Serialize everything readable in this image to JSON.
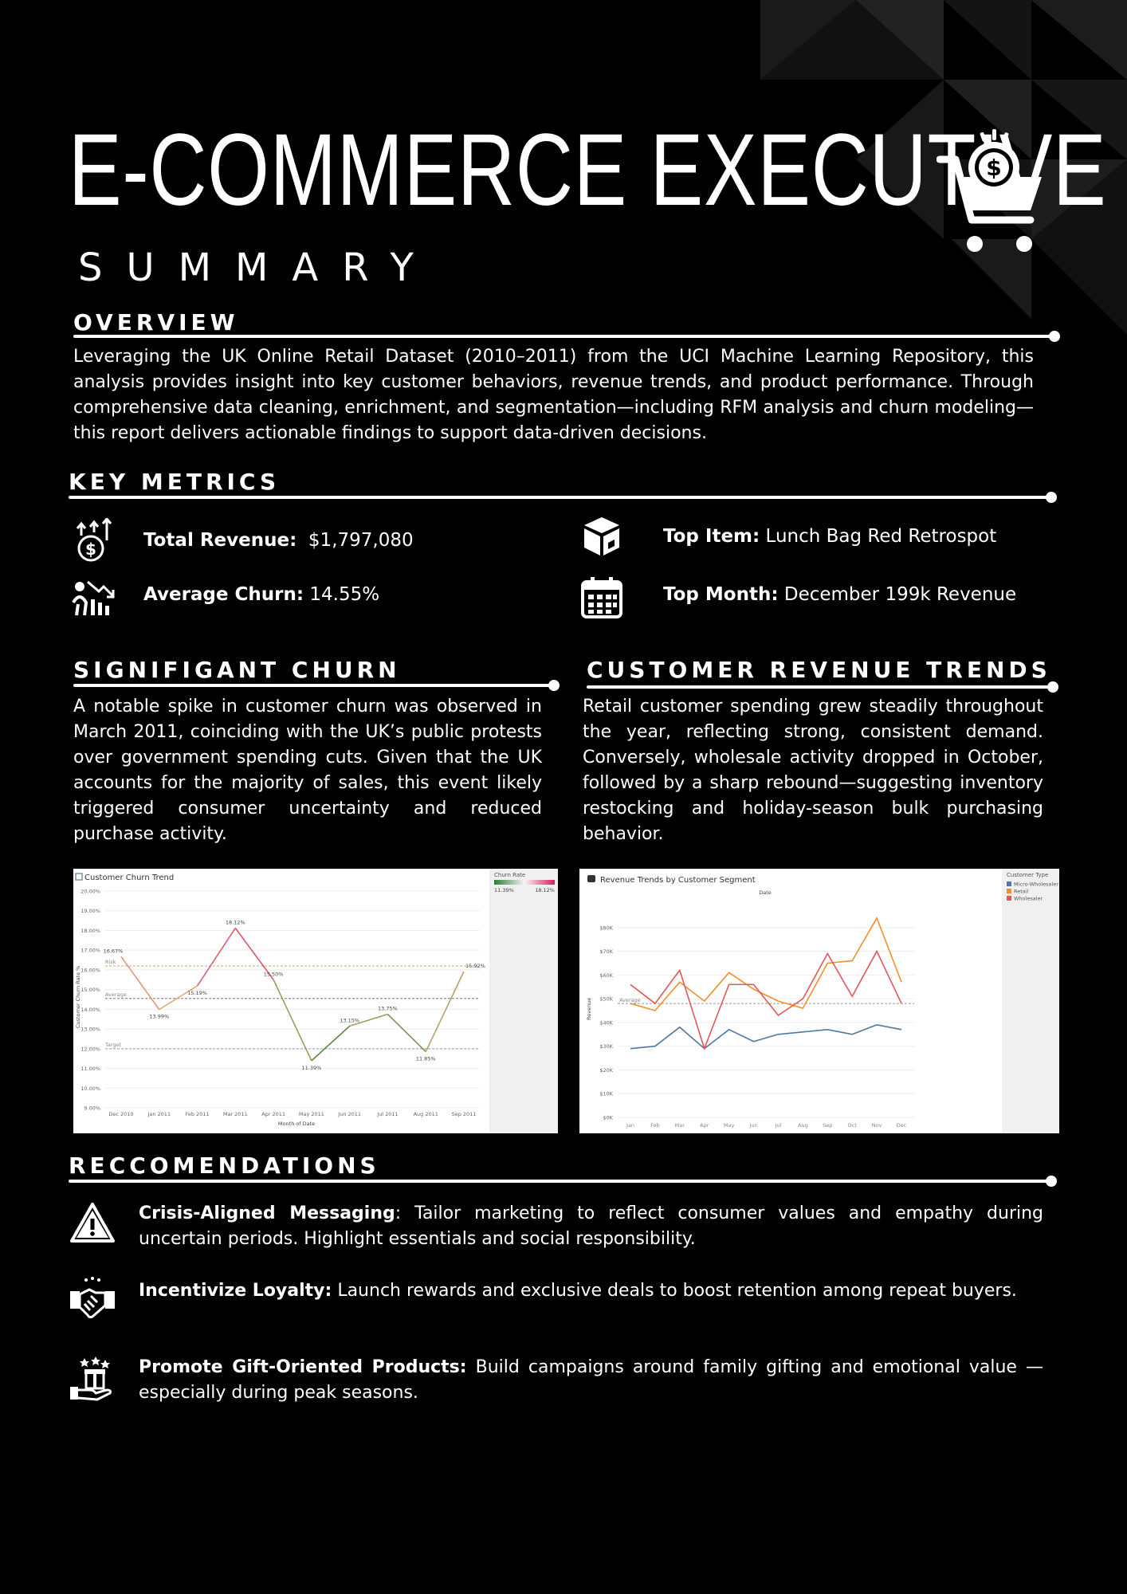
{
  "header": {
    "title": "E-COMMERCE EXECUTIVE",
    "subtitle": "SUMMARY"
  },
  "overview": {
    "heading": "OVERVIEW",
    "text": "Leveraging the UK Online Retail Dataset (2010–2011) from the UCI Machine Learning Repository, this analysis provides insight into key customer behaviors, revenue trends, and product performance. Through comprehensive data cleaning, enrichment, and segmentation—including RFM analysis and churn modeling—this report delivers actionable findings to support data-driven decisions."
  },
  "key_metrics": {
    "heading": "KEY METRICS",
    "items": [
      {
        "label": "Total Revenue:",
        "value": "$1,797,080",
        "icon": "revenue-icon"
      },
      {
        "label": "Average Churn:",
        "value": "14.55%",
        "icon": "churn-icon"
      },
      {
        "label": "Top Item:",
        "value": "Lunch Bag Red Retrospot",
        "icon": "box-icon"
      },
      {
        "label": "Top Month:",
        "value": "December 199k Revenue",
        "icon": "calendar-icon"
      }
    ]
  },
  "churn_section": {
    "heading": "SIGNIFIGANT CHURN",
    "text": "A notable spike in customer churn was observed in March 2011, coinciding with the UK’s public protests over government spending cuts. Given that the UK accounts for the majority of sales, this event likely triggered consumer uncertainty and reduced purchase activity."
  },
  "revenue_section": {
    "heading": "CUSTOMER REVENUE TRENDS",
    "text": "Retail customer spending grew steadily throughout the year, reflecting strong, consistent demand. Conversely, wholesale activity dropped in October, followed by a sharp rebound—suggesting inventory restocking and holiday-season bulk purchasing behavior."
  },
  "recommendations": {
    "heading": "RECCOMENDATIONS",
    "items": [
      {
        "title": "Crisis-Aligned Messaging",
        "sep": ": ",
        "text": "Tailor marketing to reflect consumer values and empathy during uncertain periods. Highlight essentials and social responsibility.",
        "icon": "warning-icon"
      },
      {
        "title": "Incentivize Loyalty:",
        "sep": " ",
        "text": "Launch rewards and exclusive deals to boost retention among repeat buyers.",
        "icon": "handshake-icon"
      },
      {
        "title": "Promote Gift-Oriented Products:",
        "sep": " ",
        "text": "Build campaigns around family gifting and emotional value —especially during peak seasons.",
        "icon": "gift-icon"
      }
    ]
  },
  "chart_data": [
    {
      "type": "line",
      "title": "Customer Churn Trend",
      "xlabel": "Month of Date",
      "ylabel": "Customer Churn Rate %",
      "categories": [
        "Dec 2010",
        "Jan 2011",
        "Feb 2011",
        "Mar 2011",
        "Apr 2011",
        "May 2011",
        "Jun 2011",
        "Jul 2011",
        "Aug 2011",
        "Sep 2011"
      ],
      "values": [
        16.67,
        13.99,
        15.19,
        18.12,
        15.5,
        11.39,
        13.15,
        13.75,
        11.85,
        15.92
      ],
      "value_labels": [
        "16.67%",
        "13.99%",
        "15.19%",
        "18.12%",
        "15.50%",
        "11.39%",
        "13.15%",
        "13.75%",
        "11.85%",
        "15.92%"
      ],
      "ylim": [
        9,
        20
      ],
      "yticks": [
        "9.00%",
        "10.00%",
        "11.00%",
        "12.00%",
        "13.00%",
        "14.00%",
        "15.00%",
        "16.00%",
        "17.00%",
        "18.00%",
        "19.00%",
        "20.00%"
      ],
      "reference_lines": [
        {
          "label": "Risk",
          "value": 16.2,
          "color": "#c9a96e"
        },
        {
          "label": "Average",
          "value": 14.55,
          "color": "#777777"
        },
        {
          "label": "Target",
          "value": 12.0,
          "color": "#8a9bd6"
        }
      ],
      "legend": {
        "title": "Churn Rate",
        "min": "11.39%",
        "max": "18.12%",
        "low_color": "#2e7d32",
        "high_color": "#d81b60"
      },
      "legend_position": "right",
      "grid": true
    },
    {
      "type": "line",
      "title": "Revenue Trends by Customer Segment",
      "xlabel": "Date",
      "ylabel": "Revenue",
      "categories": [
        "Jan",
        "Feb",
        "Mar",
        "Apr",
        "May",
        "Jun",
        "Jul",
        "Aug",
        "Sep",
        "Oct",
        "Nov",
        "Dec"
      ],
      "series": [
        {
          "name": "Micro-Wholesaler",
          "color": "#4e79a7",
          "values": [
            29,
            30,
            38,
            29,
            37,
            32,
            35,
            36,
            37,
            35,
            39,
            37
          ]
        },
        {
          "name": "Retail",
          "color": "#f28e2b",
          "values": [
            48,
            45,
            57,
            49,
            61,
            54,
            49,
            46,
            65,
            66,
            84,
            57
          ]
        },
        {
          "name": "Wholesaler",
          "color": "#e15759",
          "values": [
            56,
            48,
            62,
            29,
            56,
            56,
            43,
            50,
            69,
            51,
            70,
            48
          ]
        }
      ],
      "reference_lines": [
        {
          "label": "Average",
          "value": 48,
          "color": "#999999"
        }
      ],
      "ylim": [
        0,
        90
      ],
      "yticks": [
        "$0K",
        "$10K",
        "$20K",
        "$30K",
        "$40K",
        "$50K",
        "$60K",
        "$70K",
        "$80K"
      ],
      "legend": {
        "title": "Customer Type"
      },
      "legend_position": "right",
      "grid": true
    }
  ]
}
